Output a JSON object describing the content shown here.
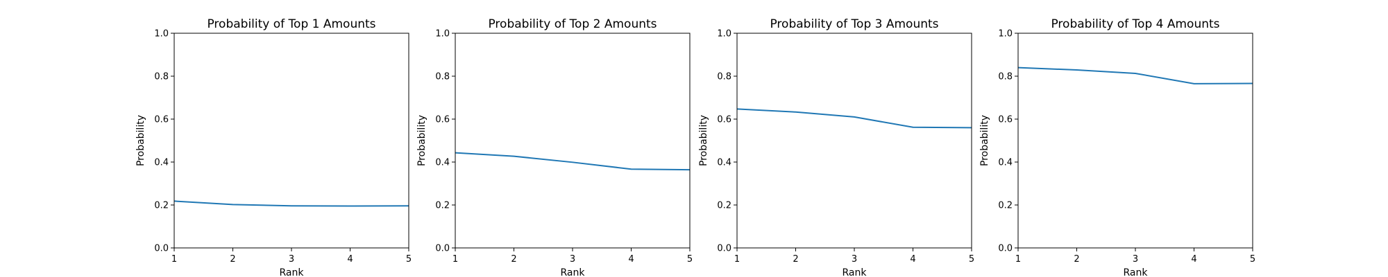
{
  "chart_data": [
    {
      "type": "line",
      "title": "Probability of Top 1 Amounts",
      "xlabel": "Rank",
      "ylabel": "Probability",
      "xlim": [
        1,
        5
      ],
      "ylim": [
        0,
        1
      ],
      "xticks": [
        "1",
        "2",
        "3",
        "4",
        "5"
      ],
      "yticks": [
        "0.0",
        "0.2",
        "0.4",
        "0.6",
        "0.8",
        "1.0"
      ],
      "grid": false,
      "color": "#1f77b4",
      "x": [
        1,
        2,
        3,
        4,
        5
      ],
      "y": [
        0.218,
        0.202,
        0.196,
        0.195,
        0.196
      ]
    },
    {
      "type": "line",
      "title": "Probability of Top 2 Amounts",
      "xlabel": "Rank",
      "ylabel": "Probability",
      "xlim": [
        1,
        5
      ],
      "ylim": [
        0,
        1
      ],
      "xticks": [
        "1",
        "2",
        "3",
        "4",
        "5"
      ],
      "yticks": [
        "0.0",
        "0.2",
        "0.4",
        "0.6",
        "0.8",
        "1.0"
      ],
      "grid": false,
      "color": "#1f77b4",
      "x": [
        1,
        2,
        3,
        4,
        5
      ],
      "y": [
        0.443,
        0.427,
        0.399,
        0.367,
        0.364
      ]
    },
    {
      "type": "line",
      "title": "Probability of Top 3 Amounts",
      "xlabel": "Rank",
      "ylabel": "Probability",
      "xlim": [
        1,
        5
      ],
      "ylim": [
        0,
        1
      ],
      "xticks": [
        "1",
        "2",
        "3",
        "4",
        "5"
      ],
      "yticks": [
        "0.0",
        "0.2",
        "0.4",
        "0.6",
        "0.8",
        "1.0"
      ],
      "grid": false,
      "color": "#1f77b4",
      "x": [
        1,
        2,
        3,
        4,
        5
      ],
      "y": [
        0.647,
        0.633,
        0.61,
        0.562,
        0.56
      ]
    },
    {
      "type": "line",
      "title": "Probability of Top 4 Amounts",
      "xlabel": "Rank",
      "ylabel": "Probability",
      "xlim": [
        1,
        5
      ],
      "ylim": [
        0,
        1
      ],
      "xticks": [
        "1",
        "2",
        "3",
        "4",
        "5"
      ],
      "yticks": [
        "0.0",
        "0.2",
        "0.4",
        "0.6",
        "0.8",
        "1.0"
      ],
      "grid": false,
      "color": "#1f77b4",
      "x": [
        1,
        2,
        3,
        4,
        5
      ],
      "y": [
        0.84,
        0.829,
        0.813,
        0.765,
        0.766
      ]
    }
  ]
}
